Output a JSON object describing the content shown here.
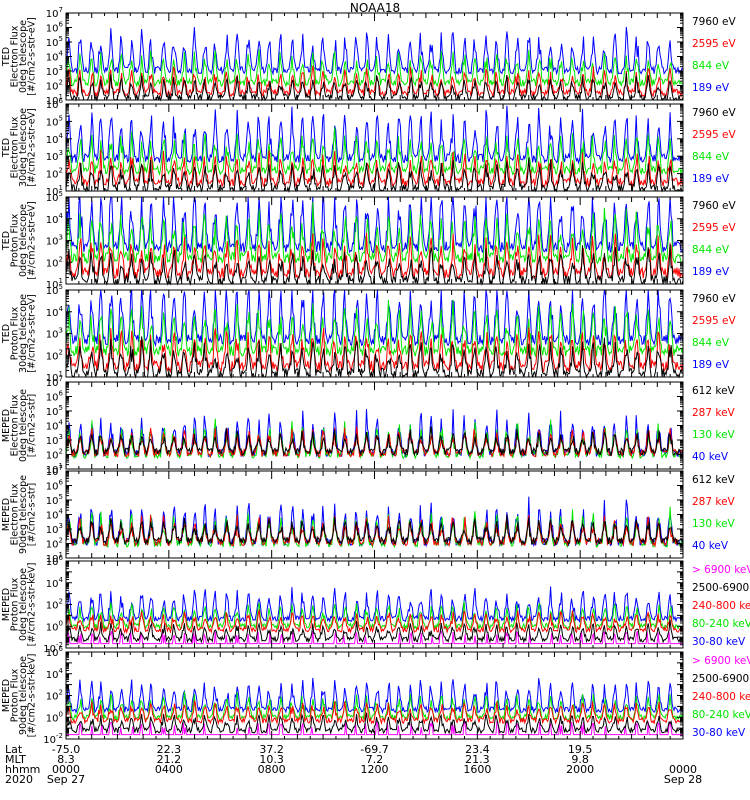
{
  "figure_title": "NOAA18",
  "colors": {
    "black": "#000000",
    "red": "#ff0000",
    "green": "#00e600",
    "blue": "#0000ff",
    "magenta": "#ff00ff"
  },
  "panels": [
    {
      "ylabel": [
        "TED",
        "Electron Flux",
        "0deg telescope",
        "[#/cm2-s-str-eV]"
      ],
      "ylim_exp": [
        1,
        7
      ],
      "legend": [
        {
          "text": "7960 eV",
          "color": "black"
        },
        {
          "text": "2595 eV",
          "color": "red"
        },
        {
          "text": "844 eV",
          "color": "green"
        },
        {
          "text": "189 eV",
          "color": "blue"
        }
      ]
    },
    {
      "ylabel": [
        "TED",
        "Electron Flux",
        "30deg telescope",
        "[#/cm2-s-str-eV]"
      ],
      "ylim_exp": [
        1,
        6
      ],
      "legend": [
        {
          "text": "7960 eV",
          "color": "black"
        },
        {
          "text": "2595 eV",
          "color": "red"
        },
        {
          "text": "844 eV",
          "color": "green"
        },
        {
          "text": "189 eV",
          "color": "blue"
        }
      ]
    },
    {
      "ylabel": [
        "TED",
        "Proton Flux",
        "0deg telescope",
        "[#/cm2-s-str-eV]"
      ],
      "ylim_exp": [
        1,
        5
      ],
      "legend": [
        {
          "text": "7960 eV",
          "color": "black"
        },
        {
          "text": "2595 eV",
          "color": "red"
        },
        {
          "text": "844 eV",
          "color": "green"
        },
        {
          "text": "189 eV",
          "color": "blue"
        }
      ]
    },
    {
      "ylabel": [
        "TED",
        "Proton Flux",
        "30deg telescope",
        "[#/cm2-s-str-eV]"
      ],
      "ylim_exp": [
        1,
        5
      ],
      "legend": [
        {
          "text": "7960 eV",
          "color": "black"
        },
        {
          "text": "2595 eV",
          "color": "red"
        },
        {
          "text": "844 eV",
          "color": "green"
        },
        {
          "text": "189 eV",
          "color": "blue"
        }
      ]
    },
    {
      "ylabel": [
        "MEPED",
        "Electron Flux",
        "0deg telescope",
        "[#/cm2-s-str]"
      ],
      "ylim_exp": [
        1,
        7
      ],
      "legend": [
        {
          "text": "612 keV",
          "color": "black"
        },
        {
          "text": "287 keV",
          "color": "red"
        },
        {
          "text": "130 keV",
          "color": "green"
        },
        {
          "text": "40 keV",
          "color": "blue"
        }
      ]
    },
    {
      "ylabel": [
        "MEPED",
        "Electron Flux",
        "90deg telescope",
        "[#/cm2-s-str]"
      ],
      "ylim_exp": [
        1,
        7
      ],
      "legend": [
        {
          "text": "612 keV",
          "color": "black"
        },
        {
          "text": "287 keV",
          "color": "red"
        },
        {
          "text": "130 keV",
          "color": "green"
        },
        {
          "text": "40 keV",
          "color": "blue"
        }
      ]
    },
    {
      "ylabel": [
        "MEPED",
        "Proton Flux",
        "0deg telescope",
        "[#/cm2-s-str-keV]"
      ],
      "ylim_exp": [
        -2,
        6
      ],
      "legend": [
        {
          "text": "> 6900 keV",
          "color": "magenta"
        },
        {
          "text": "2500-6900",
          "color": "black"
        },
        {
          "text": "240-800 ke",
          "color": "red"
        },
        {
          "text": "80-240 keV",
          "color": "green"
        },
        {
          "text": "30-80 keV",
          "color": "blue"
        }
      ]
    },
    {
      "ylabel": [
        "MEPED",
        "Proton Flux",
        "90deg telescope",
        "[#/cm2-s-str-keV]"
      ],
      "ylim_exp": [
        -2,
        6
      ],
      "legend": [
        {
          "text": "> 6900 keV",
          "color": "magenta"
        },
        {
          "text": "2500-6900",
          "color": "black"
        },
        {
          "text": "240-800 ke",
          "color": "red"
        },
        {
          "text": "80-240 keV",
          "color": "green"
        },
        {
          "text": "30-80 keV",
          "color": "blue"
        }
      ]
    }
  ],
  "footer": {
    "row_labels": [
      "Lat",
      "MLT",
      "hhmm",
      "2020"
    ],
    "columns": [
      {
        "lat": "-75.0",
        "mlt": "8.3",
        "hhmm": "0000",
        "date": "Sep 27"
      },
      {
        "lat": "22.3",
        "mlt": "21.2",
        "hhmm": "0400",
        "date": ""
      },
      {
        "lat": "37.2",
        "mlt": "10.3",
        "hhmm": "0800",
        "date": ""
      },
      {
        "lat": "-69.7",
        "mlt": "7.2",
        "hhmm": "1200",
        "date": ""
      },
      {
        "lat": "23.4",
        "mlt": "21.3",
        "hhmm": "1600",
        "date": ""
      },
      {
        "lat": "19.5",
        "mlt": "9.8",
        "hhmm": "2000",
        "date": ""
      },
      {
        "lat": "",
        "mlt": "",
        "hhmm": "0000",
        "date": "Sep 28"
      }
    ]
  },
  "chart_data": {
    "type": "line",
    "title": "NOAA18",
    "x_range_hours": [
      0,
      24
    ],
    "x_ticks": [
      "0000",
      "0400",
      "0800",
      "1200",
      "1600",
      "2000",
      "0000"
    ],
    "yscale": "log",
    "pass_times_hours": [
      0.1,
      0.55,
      1.0,
      1.35,
      1.75,
      2.15,
      2.55,
      2.95,
      3.3,
      3.8,
      4.2,
      4.6,
      5.0,
      5.4,
      5.8,
      6.25,
      6.65,
      7.1,
      7.5,
      7.9,
      8.35,
      8.8,
      9.2,
      9.6,
      10.0,
      10.45,
      10.85,
      11.3,
      11.7,
      12.1,
      12.55,
      12.95,
      13.4,
      13.8,
      14.2,
      14.6,
      15.05,
      15.5,
      15.9,
      16.35,
      16.75,
      17.15,
      17.55,
      18.0,
      18.4,
      18.85,
      19.25,
      19.7,
      20.1,
      20.5,
      20.95,
      21.35,
      21.8,
      22.2,
      22.65,
      23.05,
      23.5
    ]
  }
}
